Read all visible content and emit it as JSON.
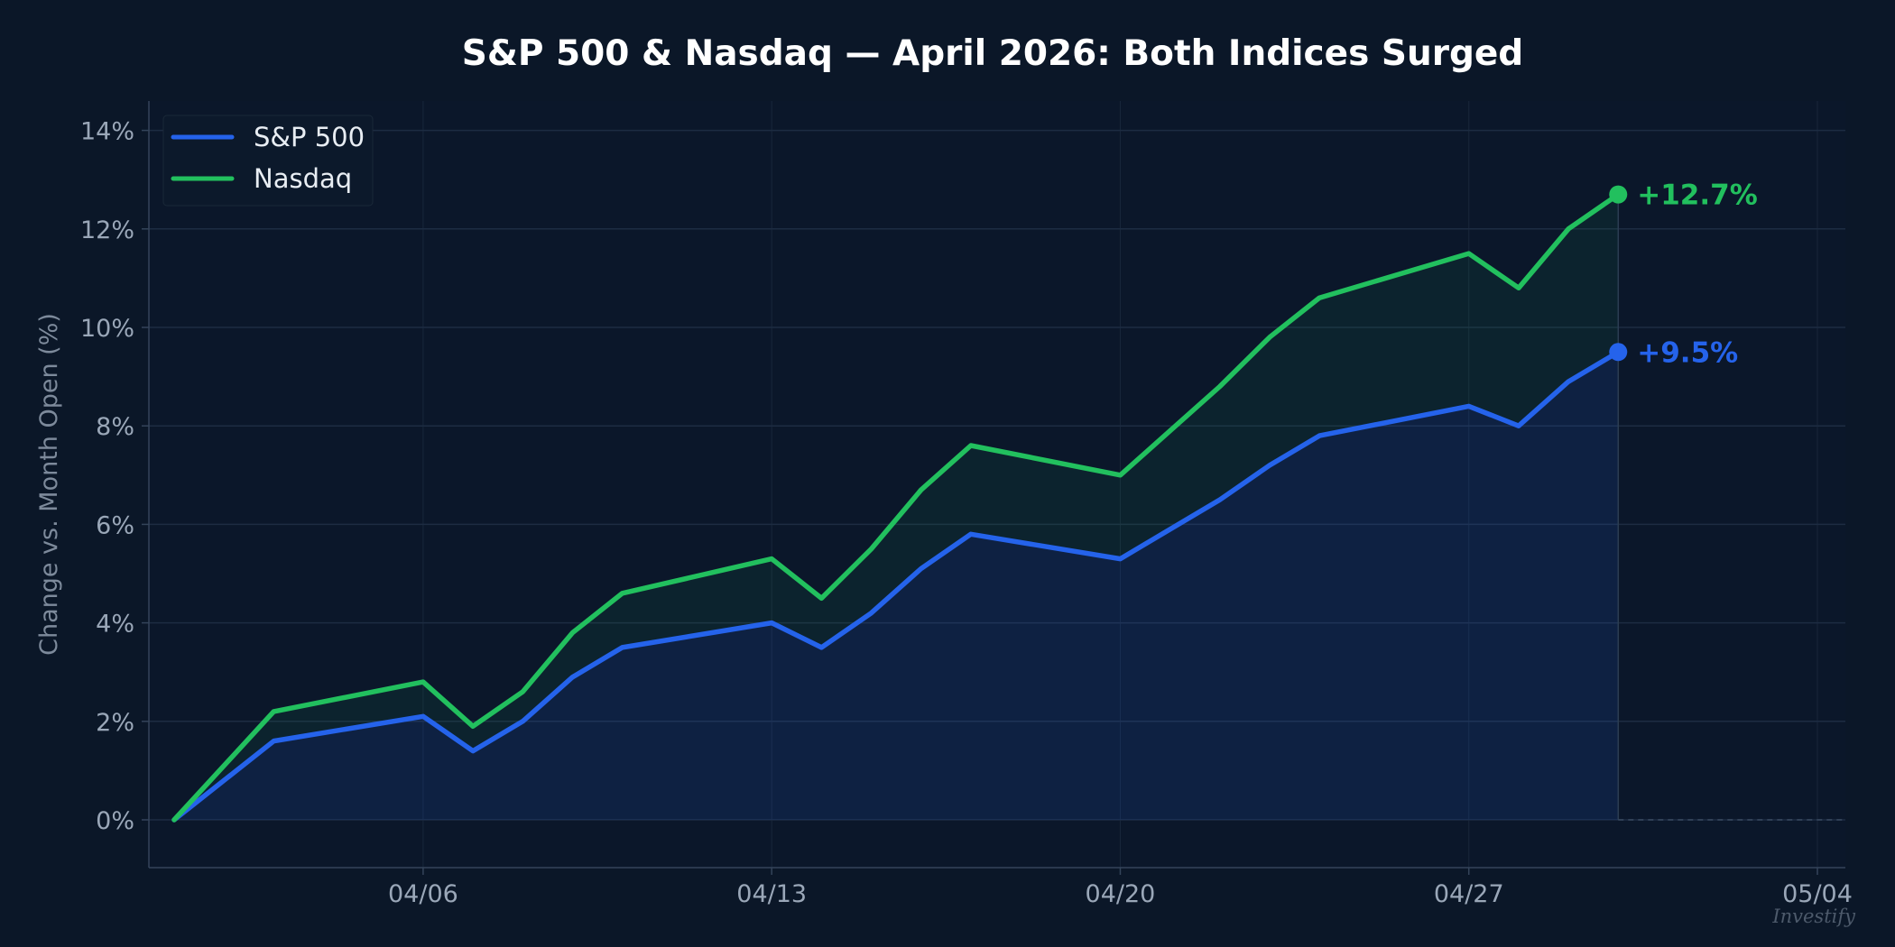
{
  "colors": {
    "background": "#0b1728",
    "plot_background": "#0b172a",
    "grid": "#1d2c42",
    "axis": "#34445a",
    "sp500": "#2563eb",
    "nasdaq": "#22c05e"
  },
  "watermark": "Investify",
  "chart_data": {
    "type": "line",
    "title": "S&P 500 & Nasdaq — April 2026: Both Indices Surged",
    "xlabel": "",
    "ylabel": "Change vs. Month Open (%)",
    "xlim": [
      "2026-04-01",
      "2026-05-04"
    ],
    "ylim": [
      -1,
      14.6
    ],
    "grid": true,
    "legend_position": "top-left",
    "x_ticks": [
      {
        "date": "2026-04-06",
        "label": "04/06"
      },
      {
        "date": "2026-04-13",
        "label": "04/13"
      },
      {
        "date": "2026-04-20",
        "label": "04/20"
      },
      {
        "date": "2026-04-27",
        "label": "04/27"
      },
      {
        "date": "2026-05-04",
        "label": "05/04"
      }
    ],
    "y_ticks": [
      {
        "value": 0,
        "label": "0%"
      },
      {
        "value": 2,
        "label": "2%"
      },
      {
        "value": 4,
        "label": "4%"
      },
      {
        "value": 6,
        "label": "6%"
      },
      {
        "value": 8,
        "label": "8%"
      },
      {
        "value": 10,
        "label": "10%"
      },
      {
        "value": 12,
        "label": "12%"
      },
      {
        "value": 14,
        "label": "14%"
      }
    ],
    "x": [
      "2026-04-01",
      "2026-04-03",
      "2026-04-06",
      "2026-04-07",
      "2026-04-08",
      "2026-04-09",
      "2026-04-10",
      "2026-04-13",
      "2026-04-14",
      "2026-04-15",
      "2026-04-16",
      "2026-04-17",
      "2026-04-20",
      "2026-04-21",
      "2026-04-22",
      "2026-04-23",
      "2026-04-24",
      "2026-04-27",
      "2026-04-28",
      "2026-04-29",
      "2026-04-30"
    ],
    "series": [
      {
        "name": "S&P 500",
        "color": "#2563eb",
        "values": [
          0,
          1.6,
          2.1,
          1.4,
          2.0,
          2.9,
          3.5,
          4.0,
          3.5,
          4.2,
          5.1,
          5.8,
          5.3,
          5.9,
          6.5,
          7.2,
          7.8,
          8.4,
          8.0,
          8.9,
          9.5
        ],
        "end_label": "+9.5%"
      },
      {
        "name": "Nasdaq",
        "color": "#22c05e",
        "values": [
          0,
          2.2,
          2.8,
          1.9,
          2.6,
          3.8,
          4.6,
          5.3,
          4.5,
          5.5,
          6.7,
          7.6,
          7.0,
          7.9,
          8.8,
          9.8,
          10.6,
          11.5,
          10.8,
          12.0,
          12.7
        ],
        "end_label": "+12.7%"
      }
    ]
  }
}
